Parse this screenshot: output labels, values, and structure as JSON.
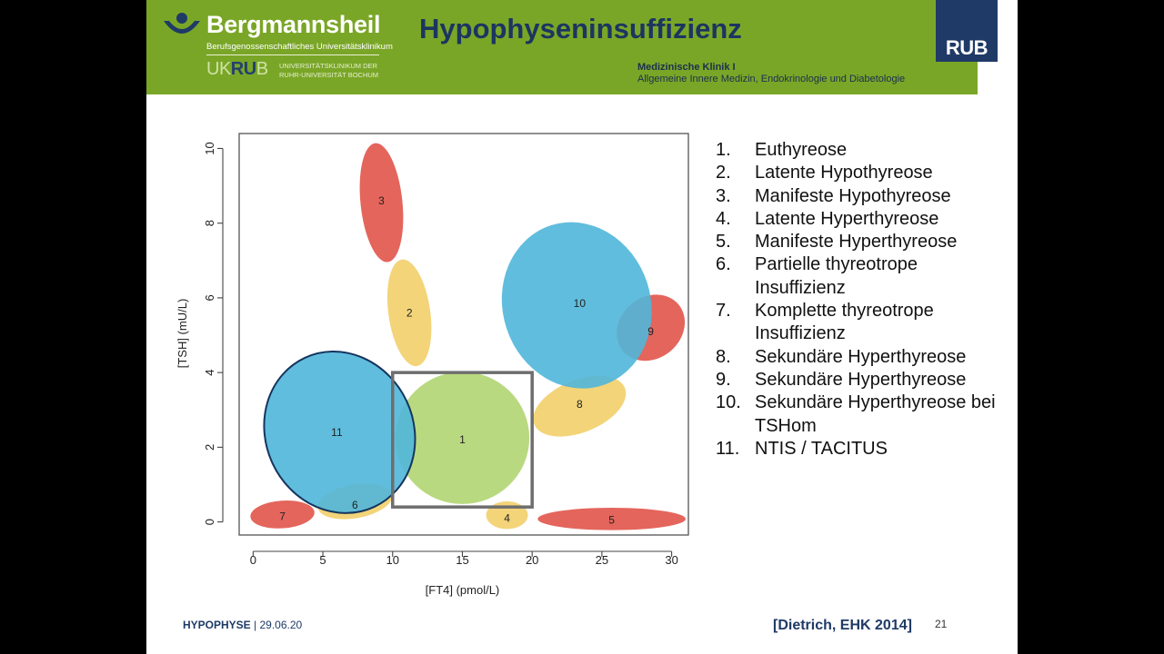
{
  "header": {
    "logo_name": "Bergmannsheil",
    "logo_subtitle": "Berufsgenossenschaftliches Universitätsklinikum",
    "logo_uk": "UK",
    "logo_rub": "RU",
    "logo_b": "B",
    "logo_univ_line1": "UNIVERSITÄTSKLINIKUM DER",
    "logo_univ_line2": "RUHR-UNIVERSITÄT BOCHUM",
    "title": "Hypophyseninsuffizienz",
    "dept_bold": "Medizinische Klinik I",
    "dept": "Allgemeine Innere Medizin, Endokrinologie und Diabetologie",
    "rub_badge": "RUB"
  },
  "legend": [
    {
      "num": "1.",
      "label": "Euthyreose"
    },
    {
      "num": "2.",
      "label": "Latente Hypothyreose"
    },
    {
      "num": "3.",
      "label": "Manifeste Hypothyreose"
    },
    {
      "num": "4.",
      "label": "Latente Hyperthyreose"
    },
    {
      "num": "5.",
      "label": "Manifeste Hyperthyreose"
    },
    {
      "num": "6.",
      "label": "Partielle thyreotrope Insuffizienz"
    },
    {
      "num": "7.",
      "label": "Komplette thyreotrope Insuffizienz"
    },
    {
      "num": "8.",
      "label": "Sekundäre Hyperthyreose"
    },
    {
      "num": "9.",
      "label": "Sekundäre Hyperthyreose"
    },
    {
      "num": "10.",
      "label": "Sekundäre Hyperthyreose bei TSHom"
    },
    {
      "num": "11.",
      "label": "NTIS / TACITUS"
    }
  ],
  "chart": {
    "xlabel": "[FT4] (pmol/L)",
    "ylabel": "[TSH] (mU/L)",
    "xlim": [
      -1,
      31.2
    ],
    "ylim": [
      -0.35,
      10.4
    ],
    "xticks": [
      0,
      5,
      10,
      15,
      20,
      25,
      30
    ],
    "yticks": [
      0,
      2,
      4,
      6,
      8,
      10
    ],
    "reference_box": {
      "x": [
        10,
        20
      ],
      "y": [
        0.4,
        4
      ]
    },
    "colors": {
      "red": "#e1544a",
      "yellow": "#f2cf6a",
      "blue": "#50b6d9",
      "green": "#b1d573",
      "box": "#6e6e6e",
      "outline": "#14355e"
    },
    "regions": [
      {
        "id": "1",
        "cx": 15,
        "cy": 2.25,
        "rx": 4.8,
        "ry": 1.77,
        "angle": 0,
        "color": "green"
      },
      {
        "id": "2",
        "cx": 11.2,
        "cy": 5.6,
        "rx": 1.5,
        "ry": 1.44,
        "angle": -8,
        "color": "yellow"
      },
      {
        "id": "3",
        "cx": 9.2,
        "cy": 8.55,
        "rx": 1.5,
        "ry": 1.6,
        "angle": -6,
        "color": "red"
      },
      {
        "id": "4",
        "cx": 18.2,
        "cy": 0.18,
        "rx": 1.5,
        "ry": 0.37,
        "angle": 0,
        "color": "yellow"
      },
      {
        "id": "5",
        "cx": 25.7,
        "cy": 0.08,
        "rx": 5.3,
        "ry": 0.3,
        "angle": 0,
        "color": "red"
      },
      {
        "id": "6",
        "cx": 7.3,
        "cy": 0.55,
        "rx": 2.7,
        "ry": 0.45,
        "angle": -10,
        "color": "yellow"
      },
      {
        "id": "7",
        "cx": 2.1,
        "cy": 0.2,
        "rx": 2.3,
        "ry": 0.37,
        "angle": -4,
        "color": "red"
      },
      {
        "id": "8",
        "cx": 23.4,
        "cy": 3.1,
        "rx": 3.5,
        "ry": 0.7,
        "angle": -22,
        "color": "yellow"
      },
      {
        "id": "9",
        "cx": 28.5,
        "cy": 5.2,
        "rx": 2.6,
        "ry": 0.82,
        "angle": -40,
        "color": "red"
      },
      {
        "id": "10",
        "cx": 23.2,
        "cy": 5.8,
        "rx": 5.3,
        "ry": 2.25,
        "angle": -18,
        "color": "blue"
      },
      {
        "id": "11",
        "cx": 6.2,
        "cy": 2.4,
        "rx": 5.3,
        "ry": 2.2,
        "angle": -25,
        "color": "blue",
        "outlined": true
      }
    ],
    "labels": [
      {
        "id": "1",
        "x": 15,
        "y": 2.2
      },
      {
        "id": "2",
        "x": 11.2,
        "y": 5.6
      },
      {
        "id": "3",
        "x": 9.2,
        "y": 8.6
      },
      {
        "id": "4",
        "x": 18.2,
        "y": 0.1
      },
      {
        "id": "5",
        "x": 25.7,
        "y": 0.05
      },
      {
        "id": "6",
        "x": 7.3,
        "y": 0.45
      },
      {
        "id": "7",
        "x": 2.1,
        "y": 0.15
      },
      {
        "id": "8",
        "x": 23.4,
        "y": 3.15
      },
      {
        "id": "9",
        "x": 28.5,
        "y": 5.1
      },
      {
        "id": "10",
        "x": 23.4,
        "y": 5.85
      },
      {
        "id": "11",
        "x": 6.0,
        "y": 2.4
      }
    ]
  },
  "footer": {
    "topic": "HYPOPHYSE",
    "date": "| 29.06.20",
    "citation": "[Dietrich, EHK 2014]",
    "page": "21"
  }
}
